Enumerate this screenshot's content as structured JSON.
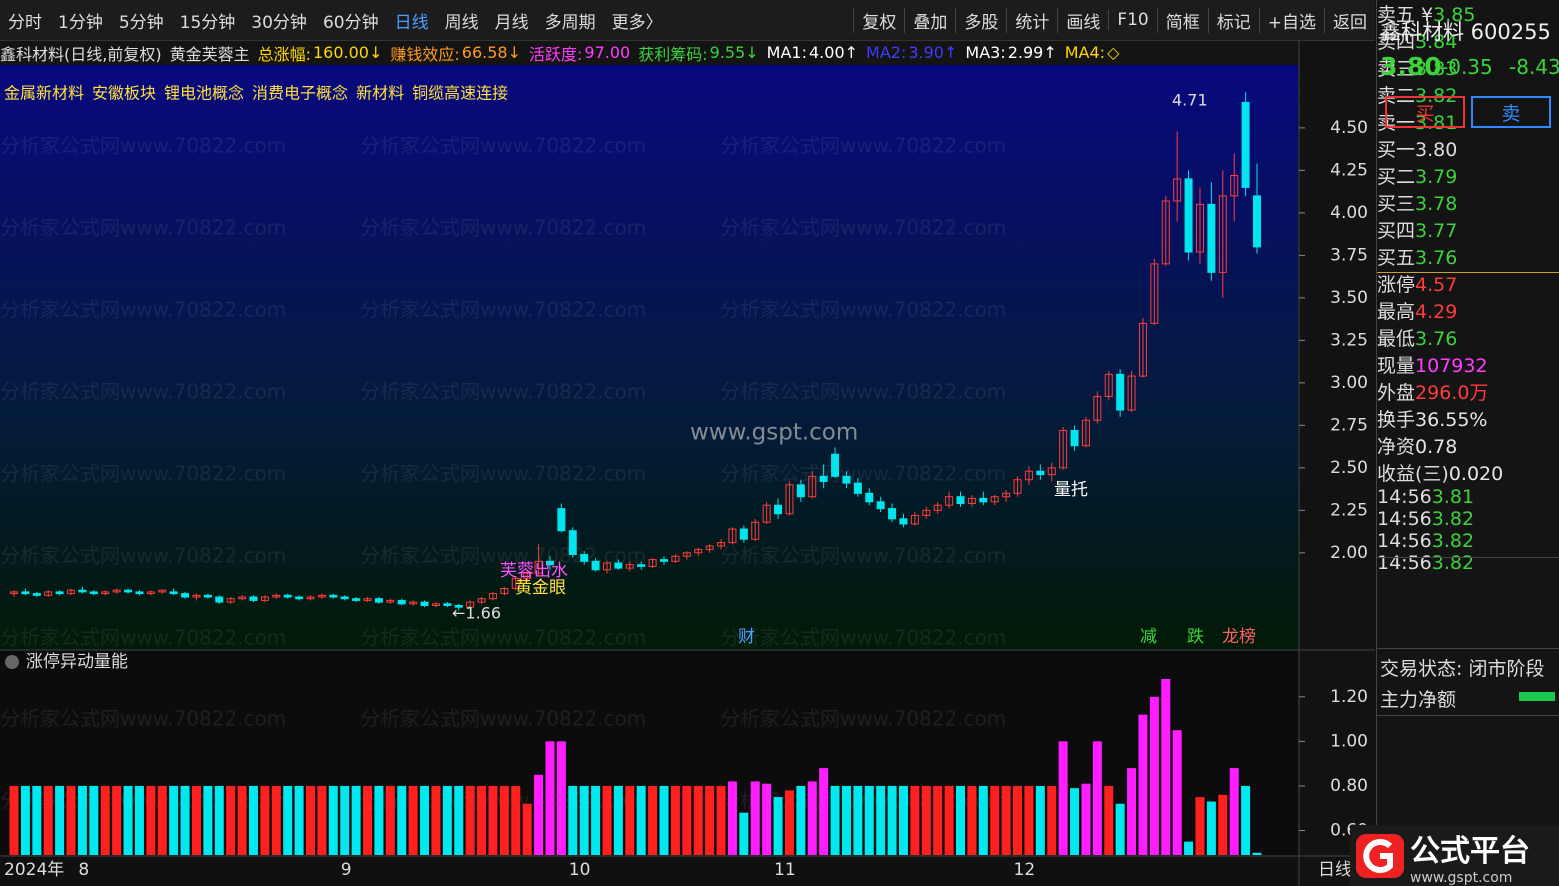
{
  "toolbar": {
    "left": [
      "分时",
      "1分钟",
      "5分钟",
      "15分钟",
      "30分钟",
      "60分钟",
      "日线",
      "周线",
      "月线",
      "多周期",
      "更多〉"
    ],
    "right": [
      "复权",
      "叠加",
      "多股",
      "统计",
      "画线",
      "F10",
      "简框",
      "标记",
      "+自选",
      "返回"
    ]
  },
  "header": {
    "title": "鑫科材料(日线,前复权)",
    "formula": "黄金芙蓉主",
    "items": [
      {
        "label": "总涨幅:",
        "value": "160.00↓",
        "color": "#ffd700"
      },
      {
        "label": "赚钱效应:",
        "value": "66.58↓",
        "color": "#ff9a1f"
      },
      {
        "label": "活跃度:",
        "value": "97.00",
        "color": "#ff3cff"
      },
      {
        "label": "获利筹码:",
        "value": "9.55↓",
        "color": "#3cd23c"
      },
      {
        "label": "MA1:",
        "value": "4.00↑",
        "color": "#ffffff"
      },
      {
        "label": "MA2:",
        "value": "3.90↑",
        "color": "#3c3cff"
      },
      {
        "label": "MA3:",
        "value": "2.99↑",
        "color": "#ffffff"
      },
      {
        "label": "MA4:",
        "value": "◇",
        "color": "#ffd700"
      }
    ]
  },
  "concepts": [
    "金属新材料",
    "安徽板块",
    "锂电池概念",
    "消费电子概念",
    "新材料",
    "铜缆高速连接"
  ],
  "watermark": "分析家公式网www.70822.com",
  "site": "www.gspt.com",
  "signals": [
    "芙蓉出水",
    "黄金眼",
    "量托",
    "财",
    "减",
    "跌",
    "龙榜"
  ],
  "annotations": [
    "4.71",
    "←1.66"
  ],
  "year_label": "2024年",
  "period_label": "日线",
  "chart_data": [
    {
      "type": "candlestick",
      "up_color": "#ff3c3c",
      "down_color": "#00e5ee",
      "ylim": [
        1.44,
        4.87
      ],
      "yticks": [
        {
          "value": 2,
          "label": "2.00"
        },
        {
          "value": 2.25,
          "label": "2.25"
        },
        {
          "value": 2.5,
          "label": "2.50"
        },
        {
          "value": 2.75,
          "label": "2.75"
        },
        {
          "value": 3,
          "label": "3.00"
        },
        {
          "value": 3.25,
          "label": "3.25"
        },
        {
          "value": 3.5,
          "label": "3.50"
        },
        {
          "value": 3.75,
          "label": "3.75"
        },
        {
          "value": 4,
          "label": "4.00"
        },
        {
          "value": 4.25,
          "label": "4.25"
        },
        {
          "value": 4.5,
          "label": "4.50"
        }
      ],
      "categories": [
        null,
        null,
        null,
        null,
        null,
        null,
        "8",
        null,
        null,
        null,
        null,
        null,
        null,
        null,
        null,
        null,
        null,
        null,
        null,
        null,
        null,
        null,
        null,
        null,
        null,
        null,
        null,
        null,
        null,
        "9",
        null,
        null,
        null,
        null,
        null,
        null,
        null,
        null,
        null,
        null,
        null,
        null,
        null,
        null,
        null,
        null,
        null,
        null,
        null,
        "10",
        null,
        null,
        null,
        null,
        null,
        null,
        null,
        null,
        null,
        null,
        null,
        null,
        null,
        null,
        null,
        null,
        null,
        "11",
        null,
        null,
        null,
        null,
        null,
        null,
        null,
        null,
        null,
        null,
        null,
        null,
        null,
        null,
        null,
        null,
        null,
        null,
        null,
        null,
        "12",
        null,
        null,
        null,
        null,
        null,
        null,
        null,
        null,
        null,
        null,
        null,
        null,
        null,
        null,
        null,
        null,
        null,
        null,
        null,
        null,
        null
      ],
      "values": [
        [
          1.76,
          1.78,
          1.74,
          1.77
        ],
        [
          1.77,
          1.79,
          1.75,
          1.76
        ],
        [
          1.76,
          1.77,
          1.74,
          1.75
        ],
        [
          1.75,
          1.78,
          1.74,
          1.77
        ],
        [
          1.77,
          1.78,
          1.75,
          1.76
        ],
        [
          1.76,
          1.79,
          1.75,
          1.78
        ],
        [
          1.78,
          1.8,
          1.76,
          1.77
        ],
        [
          1.77,
          1.78,
          1.75,
          1.76
        ],
        [
          1.76,
          1.78,
          1.75,
          1.77
        ],
        [
          1.77,
          1.79,
          1.76,
          1.78
        ],
        [
          1.78,
          1.79,
          1.76,
          1.77
        ],
        [
          1.77,
          1.78,
          1.75,
          1.76
        ],
        [
          1.76,
          1.78,
          1.75,
          1.77
        ],
        [
          1.77,
          1.78,
          1.76,
          1.78
        ],
        [
          1.77,
          1.79,
          1.75,
          1.76
        ],
        [
          1.76,
          1.77,
          1.73,
          1.74
        ],
        [
          1.74,
          1.76,
          1.72,
          1.75
        ],
        [
          1.75,
          1.76,
          1.73,
          1.74
        ],
        [
          1.74,
          1.75,
          1.7,
          1.71
        ],
        [
          1.71,
          1.74,
          1.7,
          1.73
        ],
        [
          1.73,
          1.75,
          1.72,
          1.74
        ],
        [
          1.74,
          1.75,
          1.71,
          1.72
        ],
        [
          1.72,
          1.75,
          1.71,
          1.74
        ],
        [
          1.74,
          1.76,
          1.73,
          1.75
        ],
        [
          1.75,
          1.76,
          1.73,
          1.74
        ],
        [
          1.74,
          1.75,
          1.72,
          1.73
        ],
        [
          1.73,
          1.75,
          1.72,
          1.74
        ],
        [
          1.74,
          1.76,
          1.73,
          1.75
        ],
        [
          1.75,
          1.76,
          1.73,
          1.74
        ],
        [
          1.74,
          1.75,
          1.72,
          1.73
        ],
        [
          1.73,
          1.74,
          1.71,
          1.72
        ],
        [
          1.72,
          1.74,
          1.71,
          1.73
        ],
        [
          1.73,
          1.74,
          1.7,
          1.71
        ],
        [
          1.71,
          1.73,
          1.7,
          1.72
        ],
        [
          1.72,
          1.73,
          1.69,
          1.7
        ],
        [
          1.7,
          1.72,
          1.69,
          1.71
        ],
        [
          1.71,
          1.72,
          1.68,
          1.69
        ],
        [
          1.69,
          1.71,
          1.68,
          1.7
        ],
        [
          1.7,
          1.71,
          1.68,
          1.69
        ],
        [
          1.69,
          1.7,
          1.66,
          1.68
        ],
        [
          1.68,
          1.72,
          1.67,
          1.71
        ],
        [
          1.71,
          1.74,
          1.7,
          1.73
        ],
        [
          1.73,
          1.77,
          1.72,
          1.76
        ],
        [
          1.76,
          1.8,
          1.75,
          1.79
        ],
        [
          1.79,
          1.86,
          1.78,
          1.85
        ],
        [
          1.85,
          1.9,
          1.83,
          1.88
        ],
        [
          1.88,
          2.05,
          1.87,
          1.95
        ],
        [
          1.95,
          1.98,
          1.9,
          1.93
        ],
        [
          2.26,
          2.29,
          2.12,
          2.13
        ],
        [
          2.13,
          2.15,
          1.97,
          1.99
        ],
        [
          1.99,
          2.01,
          1.93,
          1.95
        ],
        [
          1.95,
          1.97,
          1.89,
          1.9
        ],
        [
          1.9,
          1.95,
          1.88,
          1.94
        ],
        [
          1.94,
          1.96,
          1.9,
          1.91
        ],
        [
          1.91,
          1.95,
          1.89,
          1.93
        ],
        [
          1.93,
          1.95,
          1.9,
          1.92
        ],
        [
          1.92,
          1.97,
          1.91,
          1.96
        ],
        [
          1.96,
          1.98,
          1.93,
          1.95
        ],
        [
          1.95,
          1.99,
          1.94,
          1.98
        ],
        [
          1.98,
          2.01,
          1.96,
          2
        ],
        [
          2,
          2.03,
          1.98,
          2.02
        ],
        [
          2.02,
          2.05,
          2,
          2.04
        ],
        [
          2.04,
          2.08,
          2.02,
          2.06
        ],
        [
          2.06,
          2.15,
          2.05,
          2.14
        ],
        [
          2.14,
          2.16,
          2.06,
          2.08
        ],
        [
          2.08,
          2.2,
          2.07,
          2.18
        ],
        [
          2.18,
          2.3,
          2.17,
          2.28
        ],
        [
          2.28,
          2.32,
          2.2,
          2.23
        ],
        [
          2.23,
          2.42,
          2.22,
          2.4
        ],
        [
          2.4,
          2.43,
          2.3,
          2.33
        ],
        [
          2.33,
          2.48,
          2.32,
          2.45
        ],
        [
          2.45,
          2.52,
          2.38,
          2.42
        ],
        [
          2.58,
          2.62,
          2.44,
          2.45
        ],
        [
          2.45,
          2.48,
          2.38,
          2.41
        ],
        [
          2.41,
          2.44,
          2.33,
          2.35
        ],
        [
          2.35,
          2.38,
          2.28,
          2.3
        ],
        [
          2.3,
          2.33,
          2.24,
          2.26
        ],
        [
          2.26,
          2.29,
          2.18,
          2.2
        ],
        [
          2.2,
          2.23,
          2.15,
          2.17
        ],
        [
          2.17,
          2.24,
          2.16,
          2.22
        ],
        [
          2.22,
          2.27,
          2.2,
          2.25
        ],
        [
          2.25,
          2.3,
          2.23,
          2.28
        ],
        [
          2.28,
          2.36,
          2.26,
          2.33
        ],
        [
          2.33,
          2.36,
          2.27,
          2.29
        ],
        [
          2.29,
          2.34,
          2.27,
          2.32
        ],
        [
          2.32,
          2.36,
          2.28,
          2.3
        ],
        [
          2.3,
          2.34,
          2.28,
          2.33
        ],
        [
          2.33,
          2.37,
          2.3,
          2.35
        ],
        [
          2.35,
          2.45,
          2.33,
          2.43
        ],
        [
          2.43,
          2.51,
          2.4,
          2.48
        ],
        [
          2.48,
          2.52,
          2.43,
          2.46
        ],
        [
          2.46,
          2.53,
          2.42,
          2.5
        ],
        [
          2.5,
          2.74,
          2.49,
          2.72
        ],
        [
          2.72,
          2.75,
          2.6,
          2.63
        ],
        [
          2.63,
          2.8,
          2.62,
          2.78
        ],
        [
          2.78,
          2.95,
          2.76,
          2.92
        ],
        [
          2.92,
          3.07,
          2.9,
          3.05
        ],
        [
          3.05,
          3.08,
          2.8,
          2.84
        ],
        [
          2.84,
          3.07,
          2.83,
          3.04
        ],
        [
          3.04,
          3.38,
          3.03,
          3.35
        ],
        [
          3.35,
          3.73,
          3.34,
          3.7
        ],
        [
          3.7,
          4.1,
          3.69,
          4.07
        ],
        [
          4.07,
          4.48,
          3.95,
          4.2
        ],
        [
          4.2,
          4.25,
          3.72,
          3.77
        ],
        [
          3.77,
          4.15,
          3.7,
          4.05
        ],
        [
          4.05,
          4.18,
          3.6,
          3.65
        ],
        [
          3.65,
          4.25,
          3.5,
          4.1
        ],
        [
          4.1,
          4.35,
          3.95,
          4.22
        ],
        [
          4.65,
          4.71,
          4.1,
          4.15
        ],
        [
          4.1,
          4.29,
          3.76,
          3.8
        ]
      ]
    },
    {
      "type": "bar",
      "title": "涨停异动量能",
      "high_color": "#ff1eff",
      "up_color": "#ff2020",
      "down_color": "#00e8f0",
      "ylim": [
        0.49,
        1.41
      ],
      "yticks": [
        {
          "value": 0.6,
          "label": "0.60"
        },
        {
          "value": 0.8,
          "label": "0.80"
        },
        {
          "value": 1,
          "label": "1.00"
        },
        {
          "value": 1.2,
          "label": "1.20"
        }
      ],
      "values": [
        0.8,
        0.8,
        0.8,
        0.8,
        0.8,
        0.8,
        0.8,
        0.8,
        0.8,
        0.8,
        0.8,
        0.8,
        0.8,
        0.8,
        0.8,
        0.8,
        0.8,
        0.8,
        0.8,
        0.8,
        0.8,
        0.8,
        0.8,
        0.8,
        0.8,
        0.8,
        0.8,
        0.8,
        0.8,
        0.8,
        0.8,
        0.8,
        0.8,
        0.8,
        0.8,
        0.8,
        0.8,
        0.8,
        0.8,
        0.8,
        0.8,
        0.8,
        0.8,
        0.8,
        0.8,
        0.72,
        0.85,
        1,
        1,
        0.8,
        0.8,
        0.8,
        0.8,
        0.8,
        0.8,
        0.8,
        0.8,
        0.8,
        0.8,
        0.8,
        0.8,
        0.8,
        0.8,
        0.82,
        0.68,
        0.82,
        0.81,
        0.75,
        0.78,
        0.8,
        0.82,
        0.88,
        0.8,
        0.8,
        0.8,
        0.8,
        0.8,
        0.8,
        0.8,
        0.8,
        0.8,
        0.8,
        0.8,
        0.8,
        0.8,
        0.8,
        0.8,
        0.8,
        0.8,
        0.8,
        0.8,
        0.8,
        1,
        0.79,
        0.81,
        1,
        0.8,
        0.72,
        0.88,
        1.12,
        1.2,
        1.28,
        1.05,
        0.55,
        0.75,
        0.73,
        0.76,
        0.88,
        0.8,
        0.5
      ]
    }
  ],
  "quote": {
    "name": "鑫科材料 600255",
    "price": "3.80",
    "change": "-0.35",
    "change_pct": "-8.43",
    "buy": "买",
    "sell": "卖",
    "asks": [
      {
        "label": "卖五 ¥",
        "price": "3.85"
      },
      {
        "label": "卖四",
        "price": "3.84"
      },
      {
        "label": "卖三",
        "price": "3.83"
      },
      {
        "label": "卖二",
        "price": "3.82"
      },
      {
        "label": "卖一",
        "price": "3.81"
      }
    ],
    "bids": [
      {
        "label": "买一",
        "price": "3.80"
      },
      {
        "label": "买二",
        "price": "3.79"
      },
      {
        "label": "买三",
        "price": "3.78"
      },
      {
        "label": "买四",
        "price": "3.77"
      },
      {
        "label": "买五",
        "price": "3.76"
      }
    ],
    "stats": [
      {
        "label": "涨停",
        "value": "4.57",
        "color": "#ff3c3c"
      },
      {
        "label": "最高",
        "value": "4.29",
        "color": "#ff3c3c"
      },
      {
        "label": "最低",
        "value": "3.76",
        "color": "#3cd23c"
      },
      {
        "label": "现量",
        "value": "107932",
        "color": "#ff3cff"
      },
      {
        "label": "外盘",
        "value": "296.0万",
        "color": "#ff3c3c"
      },
      {
        "label": "换手",
        "value": "36.55%",
        "color": "#e6e6e6"
      },
      {
        "label": "净资",
        "value": "0.78",
        "color": "#e6e6e6"
      },
      {
        "label": "收益(三)",
        "value": "0.020",
        "color": "#e6e6e6"
      }
    ],
    "status": "交易状态: 闭市阶段",
    "main_flow": "主力净额",
    "ticks": [
      {
        "time": "14:56",
        "price": "3.81"
      },
      {
        "time": "14:56",
        "price": "3.82"
      },
      {
        "time": "14:56",
        "price": "3.82"
      },
      {
        "time": "14:56",
        "price": "3.82"
      }
    ]
  },
  "logo": {
    "name": "公式平台",
    "url": "www.gspt.com"
  }
}
